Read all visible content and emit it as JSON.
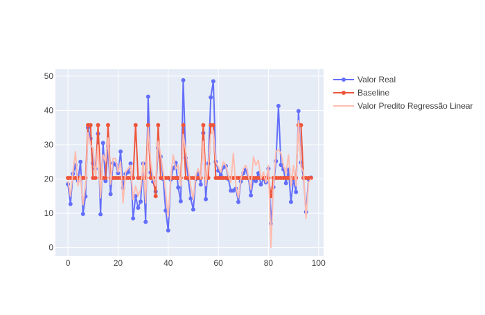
{
  "chart_data": {
    "type": "line",
    "title": "",
    "xlabel": "",
    "ylabel": "",
    "xlim": [
      -5,
      102
    ],
    "ylim": [
      -2.5,
      52
    ],
    "x_ticks": [
      0,
      20,
      40,
      60,
      80,
      100
    ],
    "y_ticks": [
      0,
      10,
      20,
      30,
      40,
      50
    ],
    "grid": true,
    "legend_position": "right",
    "x": [
      0,
      1,
      2,
      3,
      4,
      5,
      6,
      7,
      8,
      9,
      10,
      11,
      12,
      13,
      14,
      15,
      16,
      17,
      18,
      19,
      20,
      21,
      22,
      23,
      24,
      25,
      26,
      27,
      28,
      29,
      30,
      31,
      32,
      33,
      34,
      35,
      36,
      37,
      38,
      39,
      40,
      41,
      42,
      43,
      44,
      45,
      46,
      47,
      48,
      49,
      50,
      51,
      52,
      53,
      54,
      55,
      56,
      57,
      58,
      59,
      60,
      61,
      62,
      63,
      64,
      65,
      66,
      67,
      68,
      69,
      70,
      71,
      72,
      73,
      74,
      75,
      76,
      77,
      78,
      79,
      80,
      81,
      82,
      83,
      84,
      85,
      86,
      87,
      88,
      89,
      90,
      91,
      92,
      93,
      94,
      95,
      96,
      97
    ],
    "series": [
      {
        "name": "Valor Real",
        "color": "#636efa",
        "mode": "lines+markers",
        "values": [
          18.5,
          12.7,
          21.5,
          24.0,
          19.5,
          25.0,
          9.8,
          14.9,
          35.0,
          31.8,
          24.6,
          23.0,
          33.2,
          9.7,
          30.5,
          19.4,
          29.5,
          15.6,
          24.6,
          24.2,
          21.7,
          28.0,
          17.4,
          21.5,
          22.0,
          24.5,
          8.5,
          15.0,
          11.6,
          13.4,
          24.5,
          7.5,
          44.0,
          21.9,
          19.2,
          16.3,
          29.0,
          26.5,
          20.0,
          10.8,
          5.0,
          19.8,
          23.1,
          24.7,
          17.5,
          13.5,
          48.8,
          26.1,
          20.1,
          14.3,
          11.1,
          20.0,
          21.7,
          18.4,
          33.4,
          14.1,
          24.5,
          43.8,
          48.5,
          25.0,
          22.4,
          21.2,
          23.4,
          23.8,
          20.0,
          16.6,
          16.6,
          17.2,
          13.3,
          19.3,
          21.7,
          22.6,
          20.2,
          15.2,
          19.9,
          19.4,
          21.7,
          18.4,
          20.0,
          19.0,
          23.0,
          7.0,
          17.6,
          25.2,
          41.3,
          24.1,
          22.8,
          18.8,
          22.7,
          13.3,
          20.0,
          16.2,
          39.8,
          24.8,
          20.3,
          10.4,
          20.0,
          20.4
        ]
      },
      {
        "name": "Baseline",
        "color": "#ef553b",
        "mode": "lines+markers",
        "values": [
          20.3,
          20.3,
          20.3,
          20.3,
          20.3,
          20.3,
          20.3,
          20.3,
          35.7,
          35.7,
          20.3,
          20.3,
          35.7,
          20.3,
          20.3,
          20.3,
          35.7,
          20.3,
          20.3,
          20.3,
          20.3,
          20.3,
          20.3,
          20.3,
          20.3,
          20.3,
          20.3,
          35.7,
          20.3,
          20.3,
          20.3,
          20.3,
          35.7,
          20.3,
          20.3,
          15.0,
          35.7,
          20.3,
          20.3,
          20.3,
          20.3,
          20.3,
          20.3,
          20.3,
          20.3,
          20.3,
          35.7,
          20.3,
          20.3,
          20.3,
          20.3,
          20.3,
          20.3,
          20.3,
          35.7,
          20.3,
          20.3,
          35.7,
          35.7,
          20.3,
          20.3,
          20.3,
          20.3,
          20.3,
          20.3,
          20.3,
          20.3,
          20.3,
          20.3,
          20.3,
          20.3,
          20.3,
          20.3,
          20.3,
          20.3,
          20.3,
          20.3,
          20.3,
          20.3,
          20.3,
          20.3,
          15.0,
          20.3,
          20.3,
          20.3,
          20.3,
          20.3,
          20.3,
          20.3,
          20.3,
          20.3,
          20.3,
          35.7,
          35.7,
          20.3,
          20.3,
          20.3,
          20.3
        ]
      },
      {
        "name": "Valor Predito Regressão Linear",
        "color": "#ffbdb0",
        "mode": "lines",
        "values": [
          19.5,
          15.0,
          22.0,
          28.0,
          18.0,
          21.0,
          12.5,
          18.0,
          33.5,
          30.0,
          29.0,
          21.0,
          30.0,
          14.5,
          27.0,
          25.0,
          32.0,
          18.5,
          26.0,
          26.0,
          22.0,
          25.0,
          13.0,
          22.0,
          23.0,
          24.0,
          14.0,
          18.0,
          15.0,
          17.0,
          25.0,
          13.0,
          35.0,
          25.0,
          20.0,
          18.0,
          31.0,
          27.0,
          22.0,
          16.0,
          9.0,
          20.0,
          27.0,
          23.0,
          24.0,
          18.0,
          33.0,
          28.0,
          23.0,
          18.0,
          14.0,
          21.0,
          23.0,
          20.0,
          31.0,
          18.0,
          24.0,
          33.0,
          34.0,
          25.0,
          23.5,
          22.0,
          25.0,
          24.0,
          21.0,
          19.0,
          27.5,
          18.0,
          14.5,
          20.0,
          23.0,
          24.0,
          21.0,
          17.0,
          26.5,
          24.0,
          25.5,
          20.0,
          22.0,
          19.0,
          24.0,
          0.0,
          18.0,
          28.0,
          28.5,
          27.5,
          24.0,
          21.5,
          27.0,
          18.0,
          24.0,
          18.0,
          37.0,
          23.5,
          22.0,
          8.5,
          19.0,
          20.0
        ]
      }
    ]
  }
}
